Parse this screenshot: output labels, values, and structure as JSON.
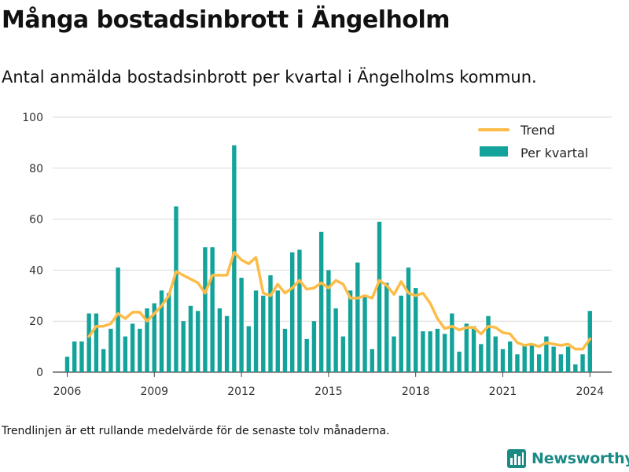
{
  "title": "Många bostadsinbrott i Ängelholm",
  "subtitle": "Antal anmälda bostadsinbrott per kvartal i Ängelholms kommun.",
  "footnote": "Trendlinjen är ett rullande medelvärde för de senaste tolv månaderna.",
  "brand": "Newsworthy",
  "colors": {
    "bars": "#13a39a",
    "trend": "#fdbc48",
    "grid": "#d9d9d9",
    "brand": "#1a8a84"
  },
  "chart_data": {
    "type": "bar",
    "xlabel": "",
    "ylabel": "",
    "ylim": [
      0,
      100
    ],
    "yticks": [
      0,
      20,
      40,
      60,
      80,
      100
    ],
    "xlim": [
      2005.5,
      2024.75
    ],
    "xticks": [
      2006,
      2009,
      2012,
      2015,
      2018,
      2021,
      2024
    ],
    "grid": true,
    "legend_position": "top-right",
    "series": [
      {
        "name": "Per kvartal",
        "type": "bar",
        "x": [
          2006.0,
          2006.25,
          2006.5,
          2006.75,
          2007.0,
          2007.25,
          2007.5,
          2007.75,
          2008.0,
          2008.25,
          2008.5,
          2008.75,
          2009.0,
          2009.25,
          2009.5,
          2009.75,
          2010.0,
          2010.25,
          2010.5,
          2010.75,
          2011.0,
          2011.25,
          2011.5,
          2011.75,
          2012.0,
          2012.25,
          2012.5,
          2012.75,
          2013.0,
          2013.25,
          2013.5,
          2013.75,
          2014.0,
          2014.25,
          2014.5,
          2014.75,
          2015.0,
          2015.25,
          2015.5,
          2015.75,
          2016.0,
          2016.25,
          2016.5,
          2016.75,
          2017.0,
          2017.25,
          2017.5,
          2017.75,
          2018.0,
          2018.25,
          2018.5,
          2018.75,
          2019.0,
          2019.25,
          2019.5,
          2019.75,
          2020.0,
          2020.25,
          2020.5,
          2020.75,
          2021.0,
          2021.25,
          2021.5,
          2021.75,
          2022.0,
          2022.25,
          2022.5,
          2022.75,
          2023.0,
          2023.25,
          2023.5,
          2023.75,
          2024.0
        ],
        "values": [
          6,
          12,
          12,
          23,
          23,
          9,
          17,
          41,
          14,
          19,
          17,
          25,
          27,
          32,
          31,
          65,
          20,
          26,
          24,
          49,
          49,
          25,
          22,
          89,
          37,
          18,
          32,
          30,
          38,
          32,
          17,
          47,
          48,
          13,
          20,
          55,
          40,
          25,
          14,
          32,
          43,
          30,
          9,
          59,
          35,
          14,
          30,
          41,
          33,
          16,
          16,
          17,
          15,
          23,
          8,
          19,
          18,
          11,
          22,
          14,
          9,
          12,
          7,
          11,
          11,
          7,
          14,
          10,
          7,
          10,
          3,
          7,
          24
        ]
      },
      {
        "name": "Trend",
        "type": "line",
        "x": [
          2006.75,
          2007.0,
          2007.25,
          2007.5,
          2007.75,
          2008.0,
          2008.25,
          2008.5,
          2008.75,
          2009.0,
          2009.25,
          2009.5,
          2009.75,
          2010.0,
          2010.25,
          2010.5,
          2010.75,
          2011.0,
          2011.25,
          2011.5,
          2011.75,
          2012.0,
          2012.25,
          2012.5,
          2012.75,
          2013.0,
          2013.25,
          2013.5,
          2013.75,
          2014.0,
          2014.25,
          2014.5,
          2014.75,
          2015.0,
          2015.25,
          2015.5,
          2015.75,
          2016.0,
          2016.25,
          2016.5,
          2016.75,
          2017.0,
          2017.25,
          2017.5,
          2017.75,
          2018.0,
          2018.25,
          2018.5,
          2018.75,
          2019.0,
          2019.25,
          2019.5,
          2019.75,
          2020.0,
          2020.25,
          2020.5,
          2020.75,
          2021.0,
          2021.25,
          2021.5,
          2021.75,
          2022.0,
          2022.25,
          2022.5,
          2022.75,
          2023.0,
          2023.25,
          2023.5,
          2023.75,
          2024.0
        ],
        "values": [
          14,
          18,
          18,
          19,
          23,
          21,
          23.5,
          23.5,
          20,
          23,
          26,
          30,
          39.5,
          38,
          36.5,
          35,
          31,
          38,
          38,
          38,
          47,
          44,
          42.5,
          45,
          31,
          30,
          34.5,
          31,
          33,
          36,
          32.5,
          33,
          35,
          33,
          36,
          34.5,
          29,
          29,
          30,
          29,
          36,
          34,
          30.5,
          35.5,
          31,
          30,
          31,
          27,
          21,
          17,
          18,
          16.5,
          17.5,
          17.5,
          15,
          18,
          17.5,
          15.5,
          15,
          11.5,
          10.5,
          11,
          10,
          11.5,
          11,
          10.5,
          11,
          9,
          9,
          13
        ]
      }
    ]
  }
}
